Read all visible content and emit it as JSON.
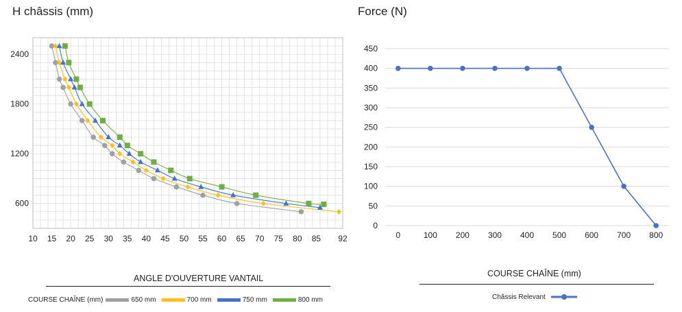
{
  "left": {
    "title": "H châssis (mm)",
    "xtitle": "ANGLE D'OUVERTURE VANTAIL",
    "legend_title": "COURSE CHAÎNE (mm)",
    "chart_data": {
      "type": "scatter",
      "xlim": [
        10,
        92
      ],
      "ylim": [
        300,
        2600
      ],
      "x_ticks": [
        10,
        15,
        20,
        25,
        30,
        35,
        40,
        45,
        50,
        55,
        60,
        65,
        70,
        75,
        80,
        85,
        92
      ],
      "y_ticks": [
        600,
        1200,
        1800,
        2400
      ],
      "grid": true,
      "legend_position": "bottom",
      "series": [
        {
          "name": "650 mm",
          "color": "#a0a0a0",
          "marker": "circle",
          "points": [
            [
              15,
              2500
            ],
            [
              16,
              2300
            ],
            [
              17,
              2100
            ],
            [
              18,
              2000
            ],
            [
              20,
              1800
            ],
            [
              23,
              1600
            ],
            [
              26,
              1400
            ],
            [
              29,
              1300
            ],
            [
              31,
              1200
            ],
            [
              34,
              1100
            ],
            [
              38,
              1000
            ],
            [
              42,
              900
            ],
            [
              48,
              800
            ],
            [
              55,
              700
            ],
            [
              64,
              600
            ],
            [
              81,
              500
            ]
          ]
        },
        {
          "name": "700 mm",
          "color": "#fbbf1e",
          "marker": "diamond",
          "points": [
            [
              16,
              2500
            ],
            [
              17,
              2300
            ],
            [
              18.5,
              2100
            ],
            [
              19.5,
              2000
            ],
            [
              21.5,
              1800
            ],
            [
              24.5,
              1600
            ],
            [
              28,
              1400
            ],
            [
              31,
              1300
            ],
            [
              33,
              1200
            ],
            [
              36.5,
              1100
            ],
            [
              40,
              1000
            ],
            [
              44.5,
              900
            ],
            [
              51,
              800
            ],
            [
              59,
              700
            ],
            [
              71,
              600
            ],
            [
              91,
              500
            ]
          ]
        },
        {
          "name": "750 mm",
          "color": "#4472c4",
          "marker": "triangle",
          "points": [
            [
              17,
              2500
            ],
            [
              18,
              2300
            ],
            [
              20,
              2100
            ],
            [
              21,
              2000
            ],
            [
              23,
              1800
            ],
            [
              26.5,
              1600
            ],
            [
              30,
              1400
            ],
            [
              33,
              1300
            ],
            [
              35.5,
              1200
            ],
            [
              38.5,
              1100
            ],
            [
              43,
              1000
            ],
            [
              47.5,
              900
            ],
            [
              54.5,
              800
            ],
            [
              63,
              700
            ],
            [
              77,
              600
            ],
            [
              86,
              550
            ]
          ]
        },
        {
          "name": "800 mm",
          "color": "#70ad47",
          "marker": "square",
          "points": [
            [
              18.5,
              2500
            ],
            [
              19.5,
              2300
            ],
            [
              21.5,
              2100
            ],
            [
              22.5,
              2000
            ],
            [
              25,
              1800
            ],
            [
              28.5,
              1600
            ],
            [
              33,
              1400
            ],
            [
              35,
              1300
            ],
            [
              38.5,
              1200
            ],
            [
              42,
              1100
            ],
            [
              46.5,
              1000
            ],
            [
              51.5,
              900
            ],
            [
              60,
              800
            ],
            [
              69,
              700
            ],
            [
              83,
              600
            ],
            [
              87,
              590
            ]
          ]
        }
      ]
    }
  },
  "right": {
    "title": "Force (N)",
    "xtitle": "COURSE CHAÎNE (mm)",
    "chart_data": {
      "type": "line",
      "x": [
        0,
        100,
        200,
        300,
        400,
        500,
        600,
        700,
        800
      ],
      "x_ticks": [
        0,
        100,
        200,
        300,
        400,
        500,
        600,
        700,
        800
      ],
      "xlim": [
        -40,
        840
      ],
      "ylim": [
        0,
        450
      ],
      "y_ticks": [
        0,
        50,
        100,
        150,
        200,
        250,
        300,
        350,
        400,
        450
      ],
      "grid": true,
      "legend_position": "bottom",
      "series": [
        {
          "name": "Châssis Relevant",
          "color": "#4a72c4",
          "values": [
            400,
            400,
            400,
            400,
            400,
            400,
            250,
            100,
            0
          ]
        }
      ]
    }
  }
}
